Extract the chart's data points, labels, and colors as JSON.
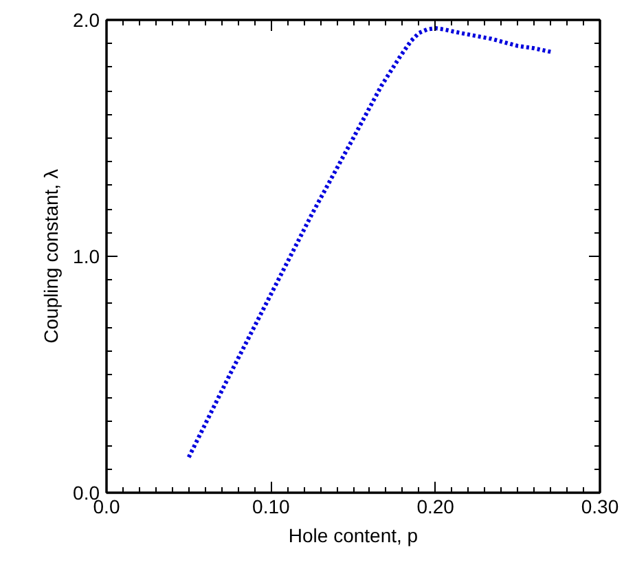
{
  "chart_data": {
    "type": "line",
    "xlabel": "Hole content, p",
    "ylabel": "Coupling constant, λ",
    "x": [
      0.05,
      0.075,
      0.1,
      0.125,
      0.15,
      0.167,
      0.178,
      0.185,
      0.19,
      0.195,
      0.2,
      0.205,
      0.215,
      0.234,
      0.25,
      0.26,
      0.27
    ],
    "series": [
      {
        "color": "#0000dd",
        "values": [
          0.15,
          0.5,
          0.84,
          1.18,
          1.5,
          1.72,
          1.84,
          1.91,
          1.945,
          1.96,
          1.965,
          1.96,
          1.945,
          1.92,
          1.89,
          1.88,
          1.865
        ]
      }
    ],
    "xlim": [
      0,
      0.3
    ],
    "ylim": [
      0,
      2.0
    ],
    "xticks": [
      {
        "value": 0,
        "label": "0.0"
      },
      {
        "value": 0.1,
        "label": "0.10"
      },
      {
        "value": 0.2,
        "label": "0.20"
      },
      {
        "value": 0.3,
        "label": "0.30"
      }
    ],
    "yticks": [
      {
        "value": 0,
        "label": "0.0"
      },
      {
        "value": 1.0,
        "label": "1.0"
      },
      {
        "value": 2.0,
        "label": "2.0"
      }
    ],
    "grid": false,
    "line_style": "dotted",
    "marker": "none"
  }
}
